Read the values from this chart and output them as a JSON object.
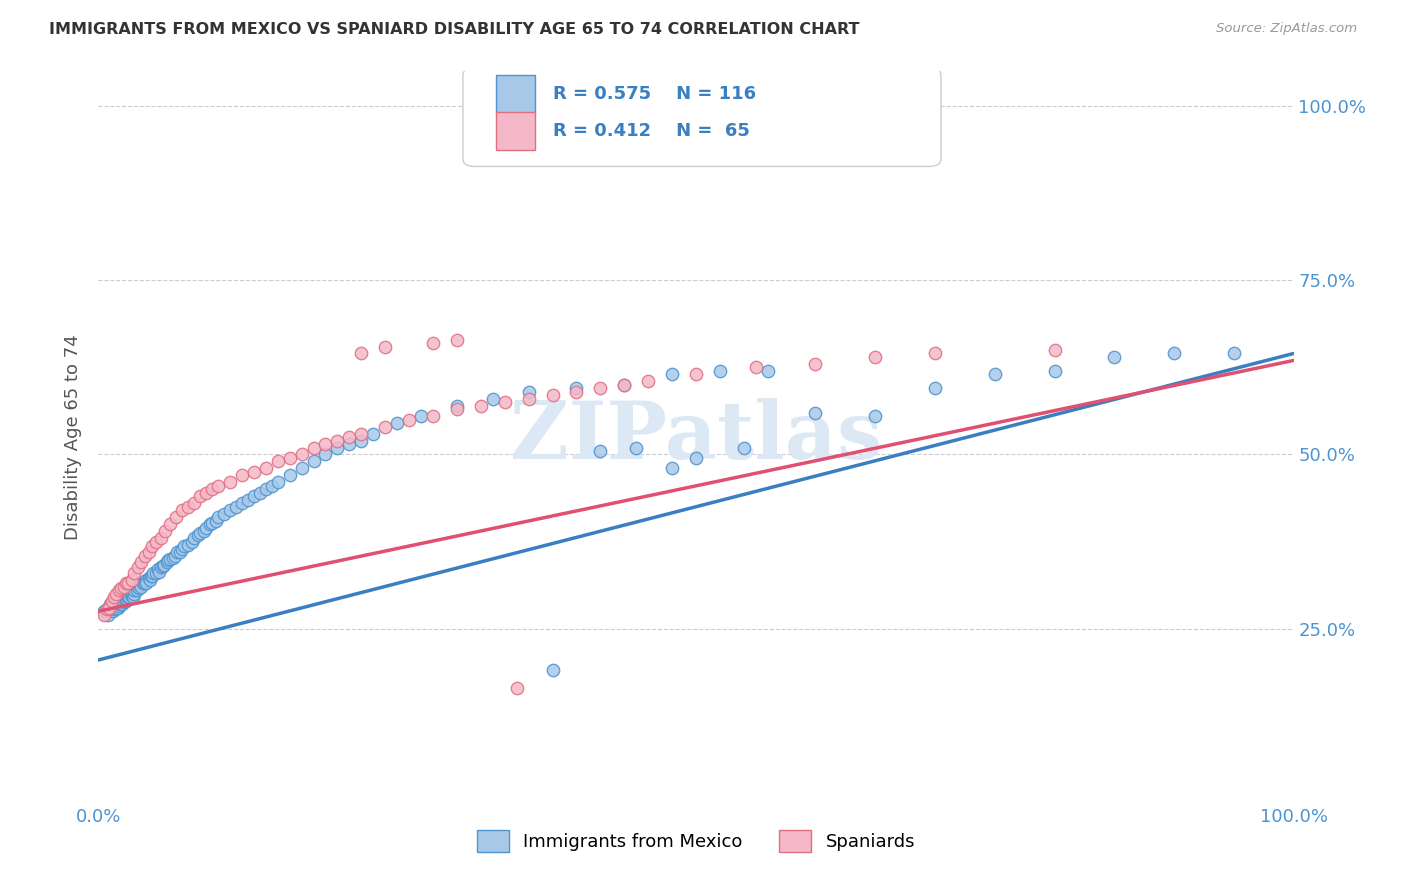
{
  "title": "IMMIGRANTS FROM MEXICO VS SPANIARD DISABILITY AGE 65 TO 74 CORRELATION CHART",
  "source": "Source: ZipAtlas.com",
  "ylabel": "Disability Age 65 to 74",
  "xlim": [
    0,
    1
  ],
  "ylim": [
    0,
    1.05
  ],
  "xtick_positions": [
    0.0,
    1.0
  ],
  "xtick_labels": [
    "0.0%",
    "100.0%"
  ],
  "ytick_positions": [
    0.25,
    0.5,
    0.75,
    1.0
  ],
  "ytick_labels": [
    "25.0%",
    "50.0%",
    "75.0%",
    "100.0%"
  ],
  "legend_r1": "R = 0.575",
  "legend_n1": "N = 116",
  "legend_r2": "R = 0.412",
  "legend_n2": "N =  65",
  "legend_label1": "Immigrants from Mexico",
  "legend_label2": "Spaniards",
  "color_blue_fill": "#a8c8e8",
  "color_blue_edge": "#4d94d0",
  "color_pink_fill": "#f4b8c8",
  "color_pink_edge": "#e07080",
  "color_blue_line": "#3a7fc1",
  "color_pink_line": "#e05070",
  "title_color": "#333333",
  "axis_tick_color": "#4d94d0",
  "watermark_color": "#dce8f4",
  "grid_color": "#cccccc",
  "background_color": "#ffffff",
  "blue_line_x0": 0.0,
  "blue_line_y0": 0.205,
  "blue_line_x1": 1.0,
  "blue_line_y1": 0.645,
  "pink_line_x0": 0.0,
  "pink_line_y0": 0.275,
  "pink_line_x1": 1.0,
  "pink_line_y1": 0.635,
  "blue_x": [
    0.005,
    0.007,
    0.008,
    0.009,
    0.01,
    0.01,
    0.012,
    0.012,
    0.013,
    0.014,
    0.015,
    0.015,
    0.016,
    0.016,
    0.017,
    0.018,
    0.018,
    0.019,
    0.02,
    0.02,
    0.021,
    0.022,
    0.022,
    0.023,
    0.024,
    0.025,
    0.025,
    0.026,
    0.027,
    0.028,
    0.029,
    0.03,
    0.03,
    0.032,
    0.033,
    0.034,
    0.035,
    0.036,
    0.037,
    0.038,
    0.039,
    0.04,
    0.04,
    0.042,
    0.043,
    0.044,
    0.045,
    0.046,
    0.048,
    0.05,
    0.051,
    0.052,
    0.054,
    0.055,
    0.057,
    0.058,
    0.06,
    0.062,
    0.064,
    0.066,
    0.068,
    0.07,
    0.072,
    0.075,
    0.078,
    0.08,
    0.083,
    0.085,
    0.088,
    0.09,
    0.093,
    0.095,
    0.098,
    0.1,
    0.105,
    0.11,
    0.115,
    0.12,
    0.125,
    0.13,
    0.135,
    0.14,
    0.145,
    0.15,
    0.16,
    0.17,
    0.18,
    0.19,
    0.2,
    0.21,
    0.22,
    0.23,
    0.25,
    0.27,
    0.3,
    0.33,
    0.36,
    0.4,
    0.44,
    0.48,
    0.52,
    0.56,
    0.6,
    0.65,
    0.7,
    0.75,
    0.8,
    0.85,
    0.9,
    0.95,
    0.42,
    0.45,
    0.48,
    0.5,
    0.54,
    0.38
  ],
  "blue_y": [
    0.275,
    0.278,
    0.27,
    0.28,
    0.28,
    0.285,
    0.275,
    0.282,
    0.278,
    0.28,
    0.285,
    0.29,
    0.28,
    0.288,
    0.282,
    0.285,
    0.29,
    0.285,
    0.29,
    0.286,
    0.288,
    0.292,
    0.295,
    0.29,
    0.293,
    0.295,
    0.298,
    0.295,
    0.298,
    0.3,
    0.295,
    0.3,
    0.305,
    0.305,
    0.31,
    0.308,
    0.312,
    0.31,
    0.315,
    0.315,
    0.318,
    0.32,
    0.315,
    0.322,
    0.32,
    0.325,
    0.325,
    0.33,
    0.33,
    0.335,
    0.332,
    0.338,
    0.34,
    0.342,
    0.345,
    0.348,
    0.35,
    0.352,
    0.355,
    0.36,
    0.36,
    0.365,
    0.368,
    0.37,
    0.375,
    0.38,
    0.385,
    0.388,
    0.39,
    0.395,
    0.4,
    0.402,
    0.405,
    0.41,
    0.415,
    0.42,
    0.425,
    0.43,
    0.435,
    0.44,
    0.445,
    0.45,
    0.455,
    0.46,
    0.47,
    0.48,
    0.49,
    0.5,
    0.51,
    0.515,
    0.52,
    0.53,
    0.545,
    0.555,
    0.57,
    0.58,
    0.59,
    0.595,
    0.6,
    0.615,
    0.62,
    0.62,
    0.56,
    0.555,
    0.595,
    0.615,
    0.62,
    0.64,
    0.645,
    0.645,
    0.505,
    0.51,
    0.48,
    0.495,
    0.51,
    0.19
  ],
  "pink_x": [
    0.005,
    0.007,
    0.009,
    0.011,
    0.013,
    0.015,
    0.017,
    0.019,
    0.021,
    0.023,
    0.025,
    0.028,
    0.03,
    0.033,
    0.036,
    0.039,
    0.042,
    0.045,
    0.048,
    0.052,
    0.056,
    0.06,
    0.065,
    0.07,
    0.075,
    0.08,
    0.085,
    0.09,
    0.095,
    0.1,
    0.11,
    0.12,
    0.13,
    0.14,
    0.15,
    0.16,
    0.17,
    0.18,
    0.19,
    0.2,
    0.21,
    0.22,
    0.24,
    0.26,
    0.28,
    0.3,
    0.32,
    0.34,
    0.36,
    0.38,
    0.4,
    0.42,
    0.44,
    0.46,
    0.5,
    0.55,
    0.6,
    0.65,
    0.7,
    0.8,
    0.22,
    0.24,
    0.28,
    0.3,
    0.35
  ],
  "pink_y": [
    0.27,
    0.278,
    0.28,
    0.29,
    0.295,
    0.3,
    0.305,
    0.308,
    0.31,
    0.315,
    0.315,
    0.32,
    0.33,
    0.338,
    0.345,
    0.355,
    0.36,
    0.368,
    0.375,
    0.38,
    0.39,
    0.4,
    0.41,
    0.42,
    0.425,
    0.43,
    0.44,
    0.445,
    0.45,
    0.455,
    0.46,
    0.47,
    0.475,
    0.48,
    0.49,
    0.495,
    0.5,
    0.51,
    0.515,
    0.52,
    0.525,
    0.53,
    0.54,
    0.55,
    0.555,
    0.565,
    0.57,
    0.575,
    0.58,
    0.585,
    0.59,
    0.595,
    0.6,
    0.605,
    0.615,
    0.625,
    0.63,
    0.64,
    0.645,
    0.65,
    0.645,
    0.655,
    0.66,
    0.665,
    0.165
  ]
}
